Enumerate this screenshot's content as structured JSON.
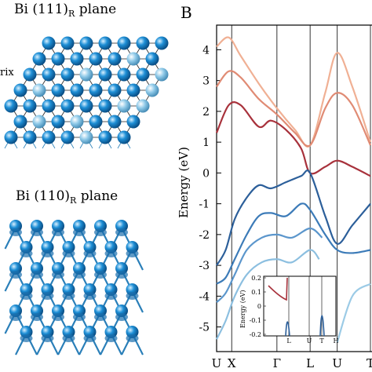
{
  "panel_a": {
    "title_top_main": "Bi (111)",
    "title_top_sub": "R",
    "title_top_rest": " plane",
    "title_bottom_main": "Bi (110)",
    "title_bottom_sub": "R",
    "title_bottom_rest": " plane",
    "clipped_label": "rix",
    "atom_color": "#1e8fd6",
    "light_atom_color": "#8ec9e8",
    "bond_color": "#2a7fb8"
  },
  "panel_b": {
    "letter": "B",
    "ylabel": "Energy (eV)",
    "xticks": [
      "U",
      "X",
      "Γ",
      "L",
      "U",
      "T"
    ],
    "inset": {
      "ylabel": "Energy (eV)",
      "yticks": [
        "0.2",
        "0.1",
        "0",
        "-0.1",
        "-0.2"
      ],
      "xticks": [
        "",
        "L",
        "U",
        "T",
        "H"
      ]
    }
  },
  "chart_data": {
    "type": "line",
    "title": "",
    "xlabel": "",
    "ylabel": "Energy (eV)",
    "ylim": [
      -5.8,
      4.8
    ],
    "yticks": [
      4,
      3,
      2,
      1,
      0,
      -1,
      -2,
      -3,
      -4,
      -5
    ],
    "k_points": [
      "U",
      "X",
      "Γ",
      "L",
      "U",
      "T"
    ],
    "k_positions": [
      0.0,
      0.5,
      2.0,
      3.1,
      4.0,
      5.1
    ],
    "grid": false,
    "series": [
      {
        "color": "#f0b094",
        "x": [
          0.0,
          0.4,
          0.8,
          1.4,
          2.0,
          2.6,
          3.1,
          3.6,
          4.0,
          4.5,
          5.1
        ],
        "y": [
          4.1,
          4.4,
          3.8,
          2.9,
          2.1,
          1.4,
          0.9,
          2.6,
          3.9,
          2.8,
          1.0
        ]
      },
      {
        "color": "#e08b74",
        "x": [
          0.0,
          0.4,
          0.8,
          1.4,
          2.0,
          2.6,
          3.1,
          3.6,
          4.0,
          4.5,
          5.1
        ],
        "y": [
          2.8,
          3.3,
          3.1,
          2.4,
          1.9,
          1.3,
          0.9,
          2.1,
          2.6,
          2.2,
          0.9
        ]
      },
      {
        "color": "#a8323c",
        "x": [
          0.0,
          0.4,
          0.8,
          1.4,
          1.8,
          2.3,
          2.8,
          3.1,
          3.6,
          4.0,
          4.5,
          5.1
        ],
        "y": [
          1.3,
          2.2,
          2.2,
          1.5,
          1.7,
          1.4,
          0.8,
          0.0,
          0.2,
          0.4,
          0.2,
          -0.1
        ]
      },
      {
        "color": "#2c5f9a",
        "x": [
          0.0,
          0.3,
          0.6,
          1.0,
          1.4,
          1.8,
          2.3,
          2.8,
          3.1,
          3.6,
          4.0,
          4.5,
          5.1
        ],
        "y": [
          -3.0,
          -2.5,
          -1.5,
          -0.8,
          -0.4,
          -0.5,
          -0.3,
          -0.1,
          0.0,
          -1.4,
          -2.3,
          -1.7,
          -1.0
        ]
      },
      {
        "color": "#3c7bb8",
        "x": [
          0.0,
          0.3,
          0.6,
          1.0,
          1.4,
          1.8,
          2.3,
          2.8,
          3.1,
          3.6,
          4.0,
          4.5,
          5.1
        ],
        "y": [
          -3.6,
          -3.4,
          -2.8,
          -2.0,
          -1.4,
          -1.3,
          -1.4,
          -1.0,
          -1.2,
          -2.0,
          -2.5,
          -2.6,
          -2.5
        ]
      },
      {
        "color": "#5b96cc",
        "x": [
          0.0,
          0.3,
          0.6,
          1.0,
          1.5,
          2.0,
          2.5,
          3.1,
          3.5
        ],
        "y": [
          -4.2,
          -3.9,
          -3.3,
          -2.5,
          -2.1,
          -2.0,
          -2.1,
          -1.8,
          -2.1
        ]
      },
      {
        "color": "#8cbfe0",
        "x": [
          0.0,
          0.3,
          0.6,
          1.0,
          1.5,
          2.0,
          2.5,
          3.1,
          3.4
        ],
        "y": [
          -5.4,
          -4.8,
          -4.0,
          -3.3,
          -2.9,
          -2.8,
          -2.9,
          -2.5,
          -2.8
        ]
      },
      {
        "color": "#9ccbe6",
        "x": [
          4.0,
          4.5,
          5.1
        ],
        "y": [
          -5.5,
          -4.0,
          -3.6
        ]
      }
    ]
  }
}
